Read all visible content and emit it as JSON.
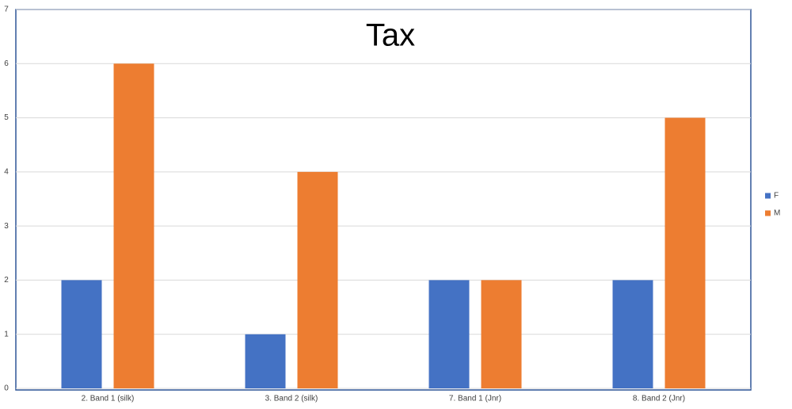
{
  "chart_data": {
    "type": "bar",
    "title": "Tax",
    "categories": [
      "2. Band 1 (silk)",
      "3. Band 2 (silk)",
      "7. Band 1 (Jnr)",
      "8. Band 2 (Jnr)"
    ],
    "series": [
      {
        "name": "F",
        "color": "#4472c4",
        "values": [
          2,
          1,
          2,
          2
        ]
      },
      {
        "name": "M",
        "color": "#ed7d31",
        "values": [
          6,
          4,
          2,
          5
        ]
      }
    ],
    "ylim": [
      0,
      7
    ],
    "yticks": [
      0,
      1,
      2,
      3,
      4,
      5,
      6,
      7
    ],
    "grid": true,
    "legend": "right"
  }
}
